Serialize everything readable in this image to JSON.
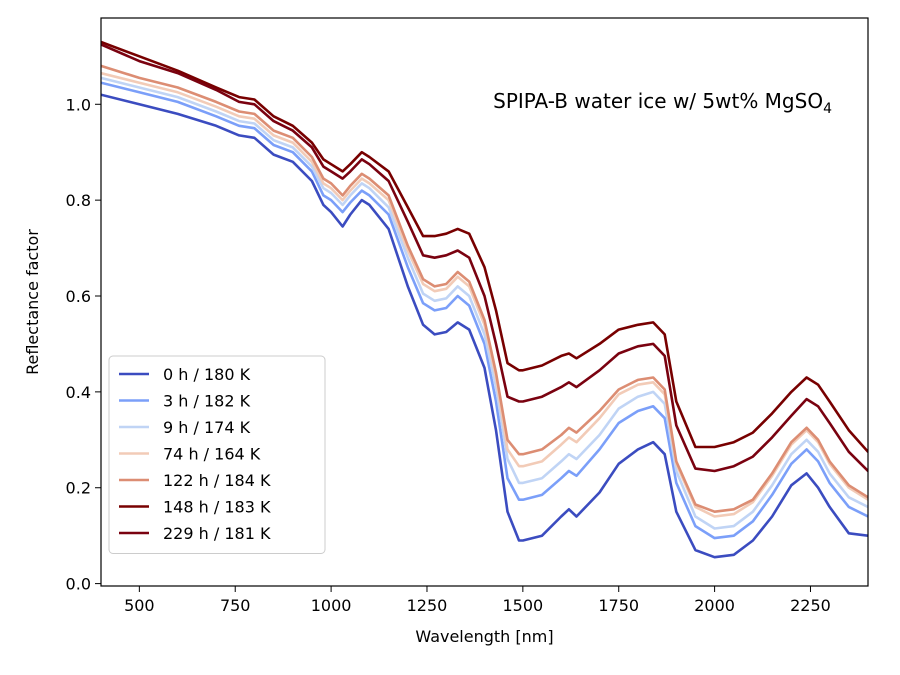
{
  "chart_data": {
    "type": "line",
    "title": "SPIPA-B water ice w/ 5wt% MgSO",
    "title_subscript": "4",
    "xlabel": "Wavelength [nm]",
    "ylabel": "Reflectance factor",
    "xlim": [
      400,
      2400
    ],
    "ylim": [
      -0.005,
      1.18
    ],
    "x_ticks": [
      500,
      750,
      1000,
      1250,
      1500,
      1750,
      2000,
      2250
    ],
    "y_ticks": [
      0.0,
      0.2,
      0.4,
      0.6,
      0.8,
      1.0
    ],
    "x_tick_labels": [
      "500",
      "750",
      "1000",
      "1250",
      "1500",
      "1750",
      "2000",
      "2250"
    ],
    "y_tick_labels": [
      "0.0",
      "0.2",
      "0.4",
      "0.6",
      "0.8",
      "1.0"
    ],
    "legend_position": "lower-left",
    "grid": false,
    "x": [
      400,
      500,
      600,
      700,
      760,
      800,
      850,
      900,
      950,
      980,
      1000,
      1030,
      1050,
      1080,
      1100,
      1150,
      1200,
      1240,
      1270,
      1300,
      1330,
      1360,
      1400,
      1430,
      1460,
      1490,
      1500,
      1550,
      1600,
      1620,
      1640,
      1700,
      1750,
      1800,
      1840,
      1870,
      1900,
      1950,
      2000,
      2050,
      2100,
      2150,
      2200,
      2240,
      2270,
      2300,
      2350,
      2400
    ],
    "series": [
      {
        "name": "0 h / 180 K",
        "color": "#3b4cc0",
        "values": [
          1.02,
          1.0,
          0.98,
          0.955,
          0.935,
          0.93,
          0.895,
          0.88,
          0.84,
          0.79,
          0.775,
          0.745,
          0.77,
          0.8,
          0.79,
          0.74,
          0.62,
          0.54,
          0.52,
          0.525,
          0.545,
          0.53,
          0.45,
          0.32,
          0.15,
          0.09,
          0.09,
          0.1,
          0.14,
          0.155,
          0.14,
          0.19,
          0.25,
          0.28,
          0.295,
          0.27,
          0.15,
          0.07,
          0.055,
          0.06,
          0.09,
          0.14,
          0.205,
          0.23,
          0.2,
          0.16,
          0.105,
          0.1
        ]
      },
      {
        "name": "3 h / 182 K",
        "color": "#7b9ff9",
        "values": [
          1.045,
          1.025,
          1.005,
          0.975,
          0.955,
          0.95,
          0.915,
          0.9,
          0.86,
          0.81,
          0.8,
          0.775,
          0.795,
          0.82,
          0.81,
          0.77,
          0.66,
          0.585,
          0.57,
          0.575,
          0.6,
          0.58,
          0.5,
          0.38,
          0.22,
          0.175,
          0.175,
          0.185,
          0.22,
          0.235,
          0.225,
          0.28,
          0.335,
          0.36,
          0.37,
          0.345,
          0.21,
          0.12,
          0.095,
          0.1,
          0.13,
          0.185,
          0.25,
          0.28,
          0.255,
          0.21,
          0.16,
          0.14
        ]
      },
      {
        "name": "9 h / 174 K",
        "color": "#c0d4f5",
        "values": [
          1.055,
          1.035,
          1.015,
          0.985,
          0.965,
          0.96,
          0.925,
          0.91,
          0.87,
          0.825,
          0.815,
          0.79,
          0.81,
          0.835,
          0.825,
          0.785,
          0.68,
          0.605,
          0.59,
          0.595,
          0.62,
          0.6,
          0.52,
          0.41,
          0.26,
          0.21,
          0.21,
          0.22,
          0.255,
          0.27,
          0.26,
          0.31,
          0.365,
          0.39,
          0.4,
          0.375,
          0.235,
          0.14,
          0.115,
          0.12,
          0.15,
          0.205,
          0.27,
          0.3,
          0.275,
          0.23,
          0.18,
          0.16
        ]
      },
      {
        "name": "74 h / 164 K",
        "color": "#f2cbb7",
        "values": [
          1.065,
          1.045,
          1.025,
          0.995,
          0.975,
          0.97,
          0.935,
          0.92,
          0.88,
          0.835,
          0.825,
          0.8,
          0.82,
          0.845,
          0.835,
          0.8,
          0.695,
          0.625,
          0.61,
          0.615,
          0.64,
          0.62,
          0.54,
          0.43,
          0.28,
          0.245,
          0.245,
          0.255,
          0.29,
          0.305,
          0.295,
          0.345,
          0.395,
          0.415,
          0.42,
          0.395,
          0.25,
          0.16,
          0.14,
          0.145,
          0.17,
          0.225,
          0.29,
          0.32,
          0.295,
          0.25,
          0.2,
          0.175
        ]
      },
      {
        "name": "122 h / 184 K",
        "color": "#dc8d73",
        "values": [
          1.08,
          1.055,
          1.035,
          1.005,
          0.985,
          0.98,
          0.945,
          0.93,
          0.89,
          0.845,
          0.835,
          0.81,
          0.83,
          0.855,
          0.845,
          0.81,
          0.705,
          0.635,
          0.62,
          0.625,
          0.65,
          0.63,
          0.55,
          0.44,
          0.3,
          0.27,
          0.27,
          0.28,
          0.31,
          0.325,
          0.315,
          0.36,
          0.405,
          0.425,
          0.43,
          0.405,
          0.255,
          0.165,
          0.15,
          0.155,
          0.175,
          0.23,
          0.295,
          0.325,
          0.3,
          0.255,
          0.205,
          0.18
        ]
      },
      {
        "name": "148 h / 183 K",
        "color": "#780000",
        "values": [
          1.13,
          1.1,
          1.07,
          1.035,
          1.015,
          1.01,
          0.975,
          0.955,
          0.92,
          0.885,
          0.875,
          0.86,
          0.875,
          0.9,
          0.89,
          0.86,
          0.785,
          0.725,
          0.725,
          0.73,
          0.74,
          0.73,
          0.66,
          0.57,
          0.46,
          0.445,
          0.445,
          0.455,
          0.475,
          0.48,
          0.47,
          0.5,
          0.53,
          0.54,
          0.545,
          0.52,
          0.38,
          0.285,
          0.285,
          0.295,
          0.315,
          0.355,
          0.4,
          0.43,
          0.415,
          0.38,
          0.32,
          0.275
        ]
      },
      {
        "name": "229 h / 181 K",
        "color": "#7a0210",
        "values": [
          1.125,
          1.09,
          1.065,
          1.03,
          1.005,
          1.0,
          0.965,
          0.945,
          0.91,
          0.87,
          0.86,
          0.845,
          0.86,
          0.885,
          0.875,
          0.84,
          0.755,
          0.685,
          0.68,
          0.685,
          0.695,
          0.68,
          0.6,
          0.5,
          0.39,
          0.38,
          0.38,
          0.39,
          0.41,
          0.42,
          0.41,
          0.445,
          0.48,
          0.495,
          0.5,
          0.475,
          0.33,
          0.24,
          0.235,
          0.245,
          0.265,
          0.305,
          0.35,
          0.385,
          0.37,
          0.335,
          0.275,
          0.235
        ]
      }
    ]
  }
}
